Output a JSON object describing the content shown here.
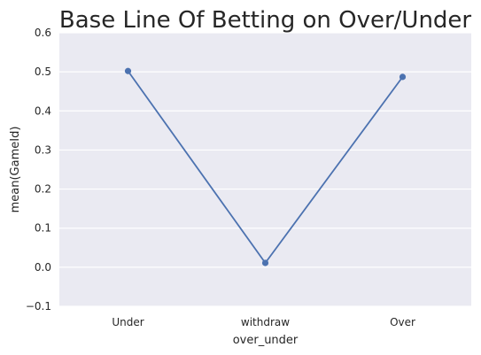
{
  "chart_data": {
    "type": "line",
    "title": "Base Line Of Betting on Over/Under",
    "xlabel": "over_under",
    "ylabel": "mean(GameId)",
    "categories": [
      "Under",
      "withdraw",
      "Over"
    ],
    "series": [
      {
        "values": [
          0.502,
          0.011,
          0.487
        ]
      }
    ],
    "ylim": [
      -0.1,
      0.6
    ],
    "yticks": [
      "−0.1",
      "0.0",
      "0.1",
      "0.2",
      "0.3",
      "0.4",
      "0.5",
      "0.6"
    ],
    "ytick_values": [
      -0.1,
      0.0,
      0.1,
      0.2,
      0.3,
      0.4,
      0.5,
      0.6
    ],
    "grid": true,
    "colors": {
      "plot_background": "#eaeaf2",
      "grid": "#ffffff",
      "line": "#4c72b0"
    }
  }
}
